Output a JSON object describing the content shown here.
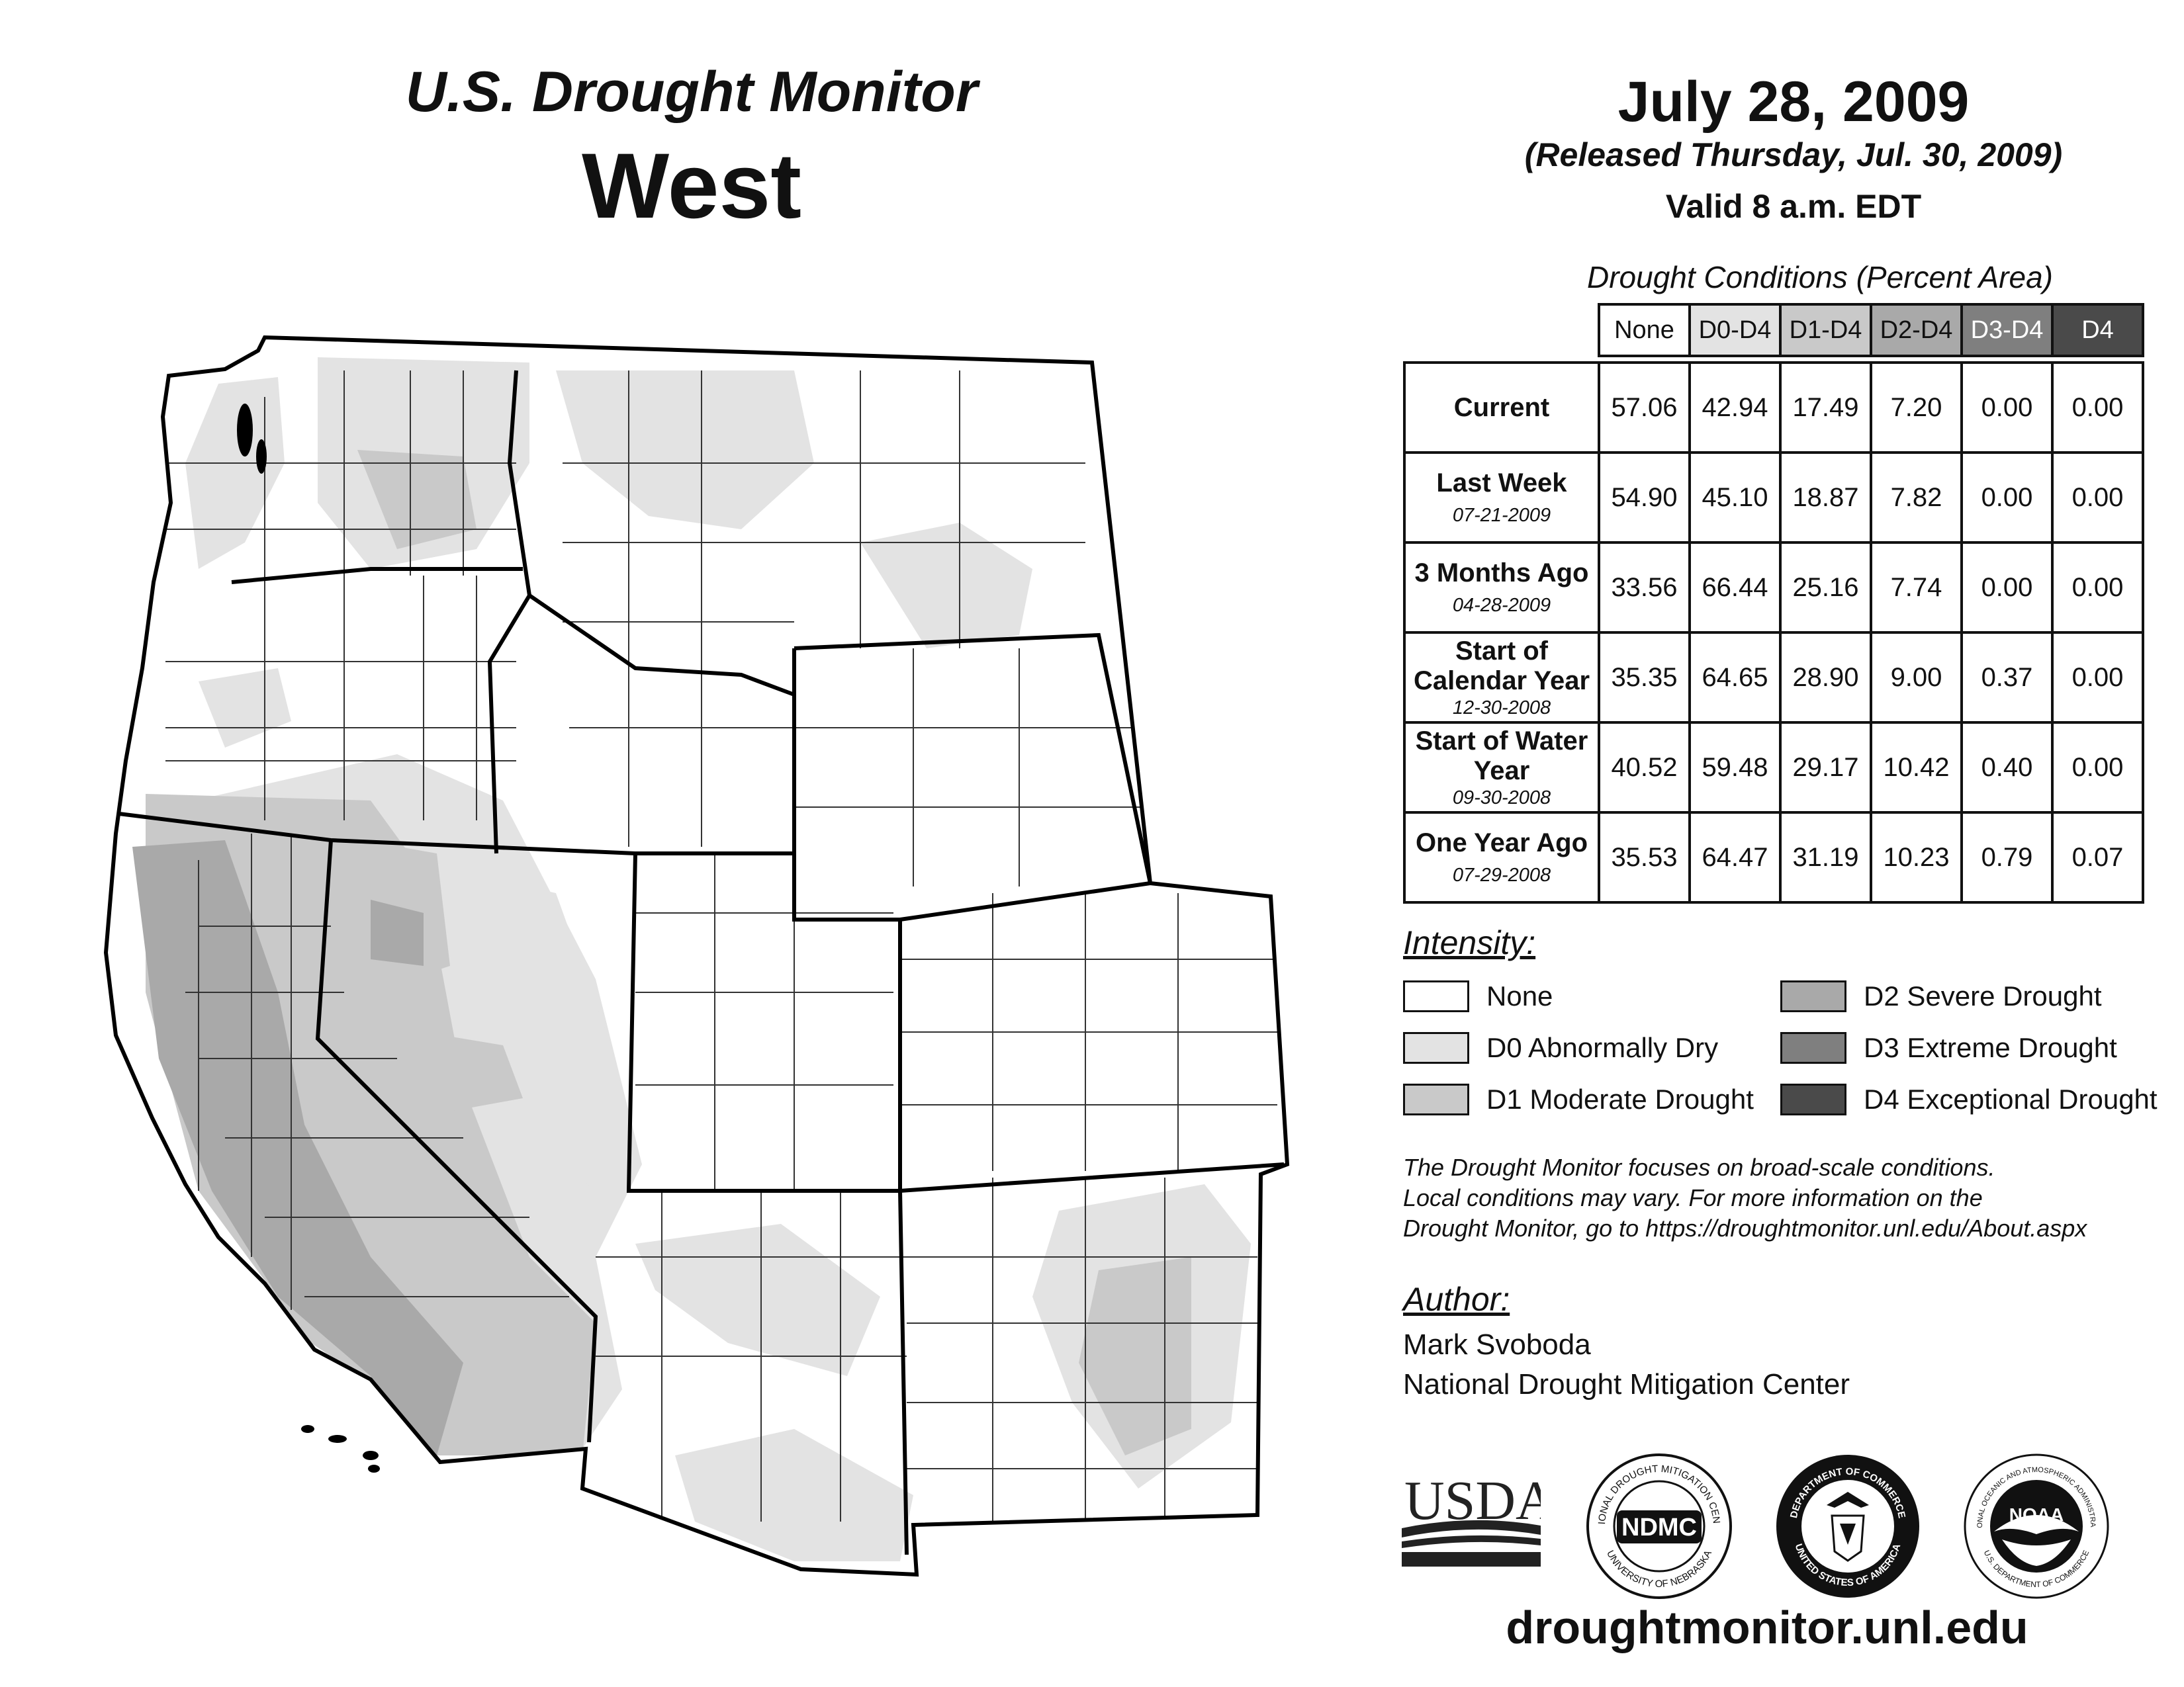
{
  "header": {
    "title": "U.S. Drought Monitor",
    "region": "West",
    "date": "July 28, 2009",
    "released": "(Released Thursday, Jul. 30, 2009)",
    "valid": "Valid 8 a.m. EDT"
  },
  "table": {
    "caption": "Drought Conditions (Percent Area)",
    "columns": [
      "None",
      "D0-D4",
      "D1-D4",
      "D2-D4",
      "D3-D4",
      "D4"
    ],
    "column_colors": [
      "#ffffff",
      "#e3e3e3",
      "#c9c9c9",
      "#a9a9a9",
      "#7f7f7f",
      "#4a4a4a"
    ],
    "rows": [
      {
        "label": "Current",
        "date": "",
        "values": [
          "57.06",
          "42.94",
          "17.49",
          "7.20",
          "0.00",
          "0.00"
        ]
      },
      {
        "label": "Last Week",
        "date": "07-21-2009",
        "values": [
          "54.90",
          "45.10",
          "18.87",
          "7.82",
          "0.00",
          "0.00"
        ]
      },
      {
        "label": "3 Months Ago",
        "date": "04-28-2009",
        "values": [
          "33.56",
          "66.44",
          "25.16",
          "7.74",
          "0.00",
          "0.00"
        ]
      },
      {
        "label": "Start of Calendar Year",
        "date": "12-30-2008",
        "values": [
          "35.35",
          "64.65",
          "28.90",
          "9.00",
          "0.37",
          "0.00"
        ]
      },
      {
        "label": "Start of Water Year",
        "date": "09-30-2008",
        "values": [
          "40.52",
          "59.48",
          "29.17",
          "10.42",
          "0.40",
          "0.00"
        ]
      },
      {
        "label": "One Year Ago",
        "date": "07-29-2008",
        "values": [
          "35.53",
          "64.47",
          "31.19",
          "10.23",
          "0.79",
          "0.07"
        ]
      }
    ]
  },
  "legend": {
    "title": "Intensity:",
    "items": [
      {
        "label": "None",
        "color": "#ffffff"
      },
      {
        "label": "D0 Abnormally Dry",
        "color": "#e3e3e3"
      },
      {
        "label": "D1 Moderate Drought",
        "color": "#c9c9c9"
      },
      {
        "label": "D2 Severe Drought",
        "color": "#a9a9a9"
      },
      {
        "label": "D3 Extreme Drought",
        "color": "#7f7f7f"
      },
      {
        "label": "D4 Exceptional Drought",
        "color": "#4a4a4a"
      }
    ]
  },
  "disclaimer": {
    "line1": "The Drought Monitor focuses on broad-scale conditions.",
    "line2": "Local conditions may vary. For more information on the",
    "line3": "Drought Monitor, go to https://droughtmonitor.unl.edu/About.aspx"
  },
  "author": {
    "title": "Author:",
    "name": "Mark Svoboda",
    "org": "National Drought Mitigation Center"
  },
  "logos": {
    "usda": "USDA",
    "ndmc": "NDMC",
    "ndmc_ring_top": "NATIONAL DROUGHT MITIGATION CENTER",
    "ndmc_ring_bottom": "UNIVERSITY OF NEBRASKA",
    "commerce_ring_top": "DEPARTMENT OF COMMERCE",
    "commerce_ring_bottom": "UNITED STATES OF AMERICA",
    "noaa": "NOAA",
    "noaa_ring_top": "NATIONAL OCEANIC AND ATMOSPHERIC ADMINISTRATION",
    "noaa_ring_bottom": "U.S. DEPARTMENT OF COMMERCE"
  },
  "website": "droughtmonitor.unl.edu"
}
